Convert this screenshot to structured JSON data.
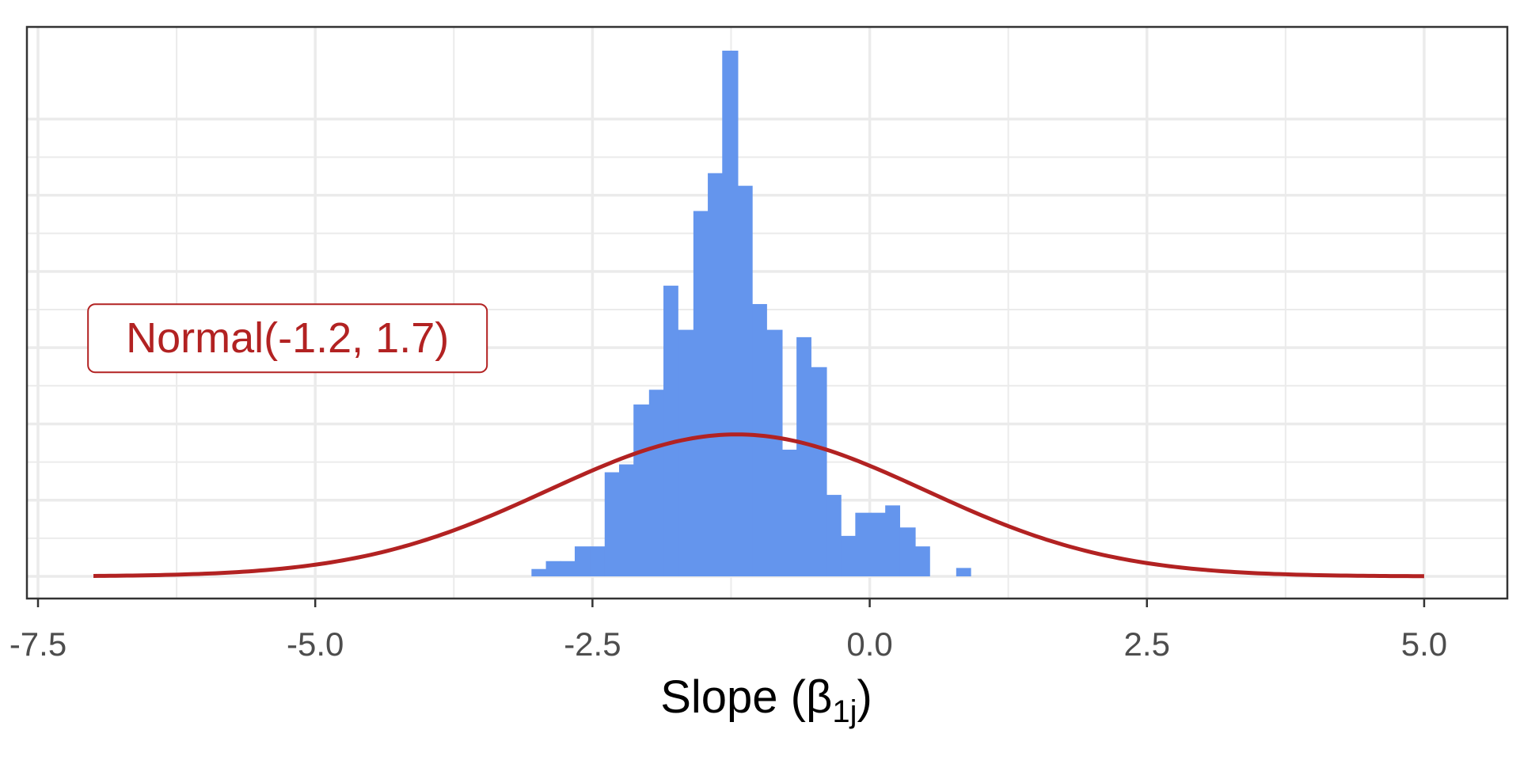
{
  "chart_data": {
    "type": "bar",
    "subtype": "histogram with normal density overlay",
    "xlabel": "Slope (β",
    "xlabel_sub": "1j",
    "xlabel_close": ")",
    "xlim": [
      -7.6,
      5.75
    ],
    "x_ticks": [
      -7.5,
      -5.0,
      -2.5,
      0.0,
      2.5,
      5.0
    ],
    "x_tick_labels": [
      "-7.5",
      "-5.0",
      "-2.5",
      "0.0",
      "2.5",
      "5.0"
    ],
    "ylim": [
      0,
      1.0
    ],
    "y_tick_labels_visible": false,
    "grid": true,
    "histogram": {
      "color": "#6495ED",
      "bins": [
        {
          "x0": -3.05,
          "x1": -2.92,
          "density": 0.014
        },
        {
          "x0": -2.92,
          "x1": -2.79,
          "density": 0.029
        },
        {
          "x0": -2.79,
          "x1": -2.66,
          "density": 0.029
        },
        {
          "x0": -2.66,
          "x1": -2.52,
          "density": 0.057
        },
        {
          "x0": -2.52,
          "x1": -2.39,
          "density": 0.057
        },
        {
          "x0": -2.39,
          "x1": -2.26,
          "density": 0.198
        },
        {
          "x0": -2.26,
          "x1": -2.13,
          "density": 0.213
        },
        {
          "x0": -2.13,
          "x1": -1.99,
          "density": 0.327
        },
        {
          "x0": -1.99,
          "x1": -1.86,
          "density": 0.355
        },
        {
          "x0": -1.86,
          "x1": -1.73,
          "density": 0.553
        },
        {
          "x0": -1.73,
          "x1": -1.59,
          "density": 0.469
        },
        {
          "x0": -1.59,
          "x1": -1.46,
          "density": 0.695
        },
        {
          "x0": -1.46,
          "x1": -1.33,
          "density": 0.767
        },
        {
          "x0": -1.33,
          "x1": -1.19,
          "density": 1.0
        },
        {
          "x0": -1.19,
          "x1": -1.06,
          "density": 0.743
        },
        {
          "x0": -1.06,
          "x1": -0.93,
          "density": 0.518
        },
        {
          "x0": -0.93,
          "x1": -0.79,
          "density": 0.469
        },
        {
          "x0": -0.79,
          "x1": -0.66,
          "density": 0.241
        },
        {
          "x0": -0.66,
          "x1": -0.53,
          "density": 0.455
        },
        {
          "x0": -0.53,
          "x1": -0.39,
          "density": 0.398
        },
        {
          "x0": -0.39,
          "x1": -0.26,
          "density": 0.155
        },
        {
          "x0": -0.26,
          "x1": -0.13,
          "density": 0.077
        },
        {
          "x0": -0.13,
          "x1": 0.01,
          "density": 0.121
        },
        {
          "x0": 0.01,
          "x1": 0.14,
          "density": 0.121
        },
        {
          "x0": 0.14,
          "x1": 0.27,
          "density": 0.135
        },
        {
          "x0": 0.27,
          "x1": 0.41,
          "density": 0.093
        },
        {
          "x0": 0.41,
          "x1": 0.54,
          "density": 0.057
        },
        {
          "x0": 0.78,
          "x1": 0.91,
          "density": 0.016
        }
      ]
    },
    "series": [
      {
        "type": "line",
        "distribution": "normal",
        "mean": -1.2,
        "sd": 1.7,
        "x_range": [
          -7.0,
          5.0
        ],
        "color": "#B22222"
      }
    ],
    "annotation": {
      "text": "Normal(-1.2, 1.7)",
      "x": -5.25,
      "y": 0.453,
      "color": "#B22222"
    }
  }
}
